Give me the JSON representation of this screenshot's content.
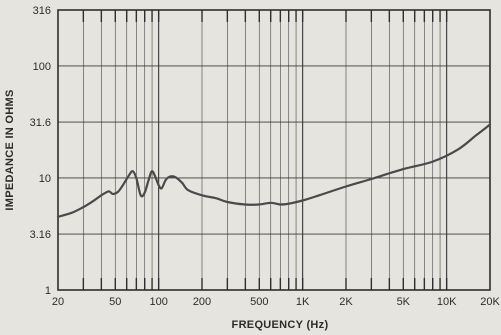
{
  "chart_data": {
    "type": "line",
    "title": "",
    "xlabel": "FREQUENCY (Hz)",
    "ylabel": "IMPEDANCE IN OHMS",
    "x_scale": "log",
    "y_scale": "log",
    "xlim": [
      20,
      20000
    ],
    "ylim": [
      1,
      316
    ],
    "grid": true,
    "x_ticks": [
      {
        "value": 20,
        "label": "20"
      },
      {
        "value": 50,
        "label": "50"
      },
      {
        "value": 100,
        "label": "100"
      },
      {
        "value": 200,
        "label": "200"
      },
      {
        "value": 500,
        "label": "500"
      },
      {
        "value": 1000,
        "label": "1K"
      },
      {
        "value": 2000,
        "label": "2K"
      },
      {
        "value": 5000,
        "label": "5K"
      },
      {
        "value": 10000,
        "label": "10K"
      },
      {
        "value": 20000,
        "label": "20K"
      }
    ],
    "y_ticks": [
      {
        "value": 316,
        "label": "316"
      },
      {
        "value": 100,
        "label": "100"
      },
      {
        "value": 31.6,
        "label": "31.6"
      },
      {
        "value": 10,
        "label": "10"
      },
      {
        "value": 3.16,
        "label": "3.16"
      },
      {
        "value": 1,
        "label": "1"
      }
    ],
    "series": [
      {
        "color": "#4a4a4a",
        "points": [
          [
            20,
            4.5
          ],
          [
            25,
            4.9
          ],
          [
            30,
            5.5
          ],
          [
            35,
            6.2
          ],
          [
            40,
            7.0
          ],
          [
            45,
            7.6
          ],
          [
            48,
            7.2
          ],
          [
            52,
            7.5
          ],
          [
            56,
            8.5
          ],
          [
            62,
            10.5
          ],
          [
            66,
            11.5
          ],
          [
            70,
            10.0
          ],
          [
            75,
            7.0
          ],
          [
            80,
            7.4
          ],
          [
            86,
            10.0
          ],
          [
            90,
            11.5
          ],
          [
            95,
            10.2
          ],
          [
            100,
            8.6
          ],
          [
            105,
            8.1
          ],
          [
            112,
            9.6
          ],
          [
            120,
            10.3
          ],
          [
            130,
            10.2
          ],
          [
            145,
            9.1
          ],
          [
            160,
            7.8
          ],
          [
            200,
            7.0
          ],
          [
            250,
            6.6
          ],
          [
            300,
            6.1
          ],
          [
            400,
            5.8
          ],
          [
            500,
            5.8
          ],
          [
            600,
            6.0
          ],
          [
            700,
            5.8
          ],
          [
            800,
            5.9
          ],
          [
            1000,
            6.3
          ],
          [
            1300,
            7.0
          ],
          [
            2000,
            8.4
          ],
          [
            3000,
            9.8
          ],
          [
            5000,
            12.0
          ],
          [
            8000,
            14.0
          ],
          [
            12000,
            18.0
          ],
          [
            16000,
            24.0
          ],
          [
            20000,
            30.0
          ]
        ]
      }
    ]
  }
}
